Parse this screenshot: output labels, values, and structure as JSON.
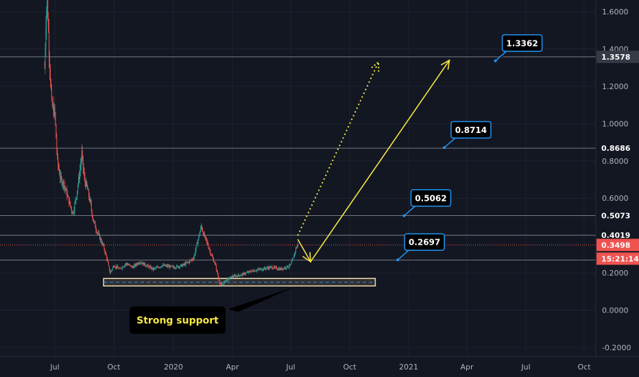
{
  "chart_data": {
    "type": "candlestick",
    "y_axis": {
      "range": [
        -0.24,
        1.68
      ],
      "ticks": [
        "1.6000",
        "1.4000",
        "1.2000",
        "1.0000",
        "0.8000",
        "0.6000",
        "0.4000",
        "0.2000",
        "0.0000",
        "-0.2000"
      ],
      "tick_values": [
        1.6,
        1.4,
        1.2,
        1.0,
        0.8,
        0.6,
        0.4,
        0.2,
        0.0,
        -0.2
      ],
      "position": "right"
    },
    "x_axis": {
      "labels": [
        "Jul",
        "Oct",
        "2020",
        "Apr",
        "Jul",
        "Oct",
        "2021",
        "Apr",
        "Jul",
        "Oct"
      ],
      "dates": [
        "2019-07-01",
        "2019-10-01",
        "2020-01-01",
        "2020-04-01",
        "2020-07-01",
        "2020-10-01",
        "2021-01-01",
        "2021-04-01",
        "2021-07-01",
        "2021-10-01"
      ]
    },
    "horizontal_levels": [
      {
        "value": 1.3578,
        "label": "1.3578",
        "badge": "gray"
      },
      {
        "value": 0.8686,
        "label": "0.8686",
        "badge": "dark"
      },
      {
        "value": 0.5073,
        "label": "0.5073",
        "badge": "dark"
      },
      {
        "value": 0.4019,
        "label": "0.4019",
        "badge": "dark"
      },
      {
        "value": 0.269,
        "label": "0.2690",
        "badge": "dark"
      }
    ],
    "current_price": {
      "value": 0.3498,
      "label": "0.3498",
      "countdown": "15:21:14",
      "color": "#ef5350"
    },
    "targets": [
      {
        "label": "1.3362",
        "value": 1.3362,
        "date": "2021-05-15"
      },
      {
        "label": "0.8714",
        "value": 0.8714,
        "date": "2021-02-25"
      },
      {
        "label": "0.5062",
        "value": 0.5062,
        "date": "2020-12-25"
      },
      {
        "label": "0.2697",
        "value": 0.2697,
        "date": "2020-12-15"
      }
    ],
    "support_zone": {
      "from": 0.13,
      "to": 0.17,
      "start": "2019-09-15",
      "end": "2020-11-10",
      "label": "Strong support"
    },
    "price_path": [
      [
        "2019-06-15",
        1.3
      ],
      [
        "2019-06-17",
        1.55
      ],
      [
        "2019-06-19",
        1.68
      ],
      [
        "2019-06-22",
        1.4
      ],
      [
        "2019-06-26",
        1.1
      ],
      [
        "2019-07-01",
        1.05
      ],
      [
        "2019-07-05",
        0.8
      ],
      [
        "2019-07-10",
        0.7
      ],
      [
        "2019-07-15",
        0.68
      ],
      [
        "2019-07-20",
        0.62
      ],
      [
        "2019-07-25",
        0.56
      ],
      [
        "2019-07-29",
        0.52
      ],
      [
        "2019-08-03",
        0.6
      ],
      [
        "2019-08-08",
        0.72
      ],
      [
        "2019-08-12",
        0.84
      ],
      [
        "2019-08-16",
        0.7
      ],
      [
        "2019-08-20",
        0.66
      ],
      [
        "2019-08-25",
        0.58
      ],
      [
        "2019-08-30",
        0.48
      ],
      [
        "2019-09-05",
        0.42
      ],
      [
        "2019-09-10",
        0.38
      ],
      [
        "2019-09-15",
        0.34
      ],
      [
        "2019-09-20",
        0.28
      ],
      [
        "2019-09-25",
        0.2
      ],
      [
        "2019-10-01",
        0.24
      ],
      [
        "2019-10-10",
        0.22
      ],
      [
        "2019-10-20",
        0.25
      ],
      [
        "2019-10-30",
        0.23
      ],
      [
        "2019-11-10",
        0.26
      ],
      [
        "2019-11-20",
        0.24
      ],
      [
        "2019-12-01",
        0.22
      ],
      [
        "2019-12-15",
        0.24
      ],
      [
        "2020-01-01",
        0.23
      ],
      [
        "2020-01-15",
        0.24
      ],
      [
        "2020-01-25",
        0.26
      ],
      [
        "2020-02-01",
        0.28
      ],
      [
        "2020-02-08",
        0.38
      ],
      [
        "2020-02-13",
        0.45
      ],
      [
        "2020-02-17",
        0.4
      ],
      [
        "2020-02-22",
        0.36
      ],
      [
        "2020-02-28",
        0.3
      ],
      [
        "2020-03-05",
        0.25
      ],
      [
        "2020-03-12",
        0.15
      ],
      [
        "2020-03-15",
        0.13
      ],
      [
        "2020-03-22",
        0.16
      ],
      [
        "2020-04-01",
        0.18
      ],
      [
        "2020-04-15",
        0.19
      ],
      [
        "2020-05-01",
        0.21
      ],
      [
        "2020-05-15",
        0.22
      ],
      [
        "2020-06-01",
        0.23
      ],
      [
        "2020-06-15",
        0.22
      ],
      [
        "2020-07-01",
        0.24
      ],
      [
        "2020-07-05",
        0.28
      ],
      [
        "2020-07-09",
        0.33
      ],
      [
        "2020-07-12",
        0.35
      ]
    ],
    "arrows": [
      {
        "style": "solid",
        "color": "#f5e642",
        "points": [
          [
            "2020-07-12",
            0.38
          ],
          [
            "2020-08-01",
            0.26
          ],
          [
            "2021-03-05",
            1.34
          ]
        ]
      },
      {
        "style": "dotted",
        "color": "#f5e642",
        "points": [
          [
            "2020-07-12",
            0.4
          ],
          [
            "2020-11-15",
            1.33
          ]
        ]
      }
    ]
  },
  "colors": {
    "background": "#131722",
    "grid": "#1e2230",
    "up": "#26a69a",
    "down": "#ef5350",
    "level_line": "#787b86",
    "callout_border": "#2196f3",
    "arrow": "#f5e642"
  }
}
